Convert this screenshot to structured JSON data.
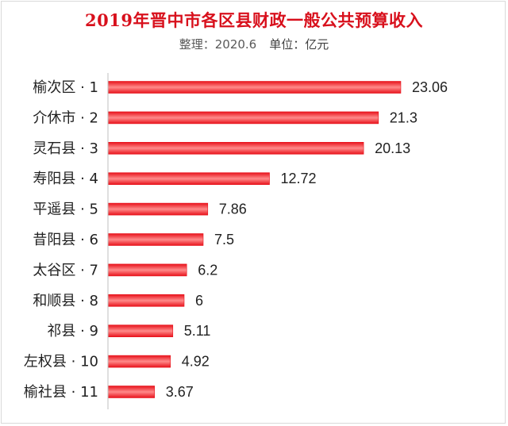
{
  "header": {
    "title": "2019年晋中市各区县财政一般公共预算收入",
    "subtitle_left": "整理：2020.6",
    "subtitle_right": "单位：亿元"
  },
  "colors": {
    "bar": "#e8131c",
    "bar_highlight": "#ff8a8a",
    "axis": "#bfbfbf",
    "title": "#d8101c"
  },
  "chart_data": {
    "type": "bar",
    "orientation": "horizontal",
    "title": "2019年晋中市各区县财政一般公共预算收入",
    "xlabel": "",
    "ylabel": "",
    "unit": "亿元",
    "xlim": [
      0,
      25
    ],
    "grid": false,
    "legend": "none",
    "categories": [
      "榆次区 · 1",
      "介休市 · 2",
      "灵石县 · 3",
      "寿阳县 · 4",
      "平遥县 · 5",
      "昔阳县 · 6",
      "太谷区 · 7",
      "和顺县 · 8",
      "祁县 · 9",
      "左权县 · 10",
      "榆社县 · 11"
    ],
    "values": [
      23.06,
      21.3,
      20.13,
      12.72,
      7.86,
      7.5,
      6.2,
      6,
      5.11,
      4.92,
      3.67
    ],
    "value_labels": [
      "23.06",
      "21.3",
      "20.13",
      "12.72",
      "7.86",
      "7.5",
      "6.2",
      "6",
      "5.11",
      "4.92",
      "3.67"
    ]
  }
}
